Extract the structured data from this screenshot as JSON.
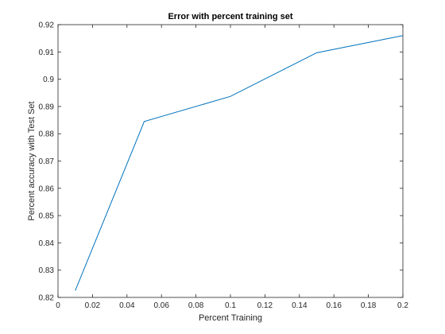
{
  "chart_data": {
    "type": "line",
    "title": "Error with percent training set",
    "xlabel": "Percent Training",
    "ylabel": "Percent accuracy with Test Set",
    "xlim": [
      0,
      0.2
    ],
    "ylim": [
      0.82,
      0.92
    ],
    "grid": false,
    "x_ticks": [
      "0",
      "0.02",
      "0.04",
      "0.06",
      "0.08",
      "0.1",
      "0.12",
      "0.14",
      "0.16",
      "0.18",
      "0.2"
    ],
    "y_ticks": [
      "0.82",
      "0.83",
      "0.84",
      "0.85",
      "0.86",
      "0.87",
      "0.88",
      "0.89",
      "0.9",
      "0.91",
      "0.92"
    ],
    "series": [
      {
        "x": [
          0.01,
          0.05,
          0.1,
          0.15,
          0.2
        ],
        "values": [
          0.8225,
          0.8845,
          0.8937,
          0.9097,
          0.916
        ],
        "color": "#0072bd"
      }
    ]
  }
}
